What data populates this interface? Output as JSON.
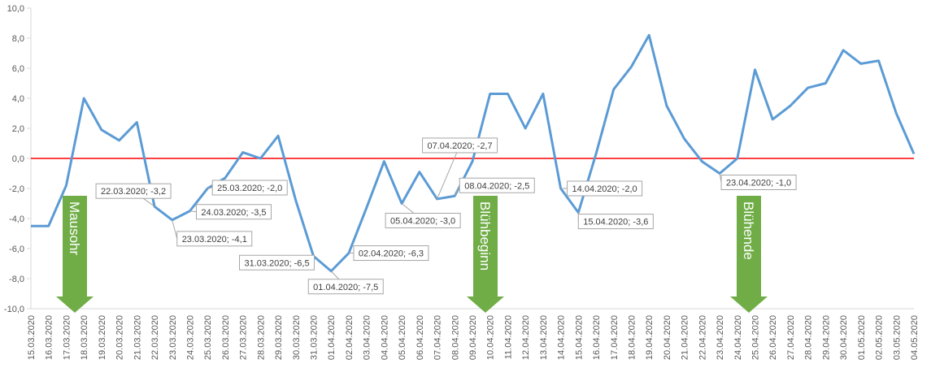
{
  "chart_data": {
    "type": "line",
    "x": [
      "15.03.2020",
      "16.03.2020",
      "17.03.2020",
      "18.03.2020",
      "19.03.2020",
      "20.03.2020",
      "21.03.2020",
      "22.03.2020",
      "23.03.2020",
      "24.03.2020",
      "25.03.2020",
      "26.03.2020",
      "27.03.2020",
      "28.03.2020",
      "29.03.2020",
      "30.03.2020",
      "31.03.2020",
      "01.04.2020",
      "02.04.2020",
      "03.04.2020",
      "04.04.2020",
      "05.04.2020",
      "06.04.2020",
      "07.04.2020",
      "08.04.2020",
      "09.04.2020",
      "10.04.2020",
      "11.04.2020",
      "12.04.2020",
      "13.04.2020",
      "14.04.2020",
      "15.04.2020",
      "16.04.2020",
      "17.04.2020",
      "18.04.2020",
      "19.04.2020",
      "20.04.2020",
      "21.04.2020",
      "22.04.2020",
      "23.04.2020",
      "24.04.2020",
      "25.04.2020",
      "26.04.2020",
      "27.04.2020",
      "28.04.2020",
      "29.04.2020",
      "30.04.2020",
      "01.05.2020",
      "02.05.2020",
      "03.05.2020",
      "04.05.2020"
    ],
    "series": [
      {
        "color": "#5b9bd5",
        "values": [
          -4.5,
          -4.5,
          -1.8,
          4.0,
          1.9,
          1.2,
          2.4,
          -3.2,
          -4.1,
          -3.5,
          -2.0,
          -1.3,
          0.4,
          0.0,
          1.5,
          -2.8,
          -6.5,
          -7.5,
          -6.3,
          -3.3,
          -0.2,
          -3.0,
          -0.9,
          -2.7,
          -2.5,
          -0.2,
          4.3,
          4.3,
          2.0,
          4.3,
          -2.0,
          -3.6,
          0.3,
          4.6,
          6.1,
          8.2,
          3.5,
          1.3,
          -0.2,
          -1.0,
          0.0,
          5.9,
          2.6,
          3.5,
          4.7,
          5.0,
          7.2,
          6.3,
          6.5,
          3.0,
          0.3
        ],
        "value_labels": [
          null,
          null,
          null,
          null,
          null,
          null,
          null,
          "22.03.2020; -3,2",
          "23.03.2020; -4,1",
          "24.03.2020; -3,5",
          "25.03.2020; -2,0",
          null,
          null,
          null,
          null,
          null,
          "31.03.2020; -6,5",
          "01.04.2020; -7,5",
          "02.04.2020; -6,3",
          null,
          null,
          "05.04.2020; -3,0",
          null,
          "07.04.2020; -2,7",
          "08.04.2020; -2,5",
          null,
          null,
          null,
          null,
          null,
          "14.04.2020; -2,0",
          "15.04.2020; -3,6",
          null,
          null,
          null,
          null,
          null,
          null,
          null,
          "23.04.2020; -1,0",
          null,
          null,
          null,
          null,
          null,
          null,
          null,
          null,
          null,
          null,
          null
        ]
      }
    ],
    "ylim": [
      -10,
      10
    ],
    "yticks": [
      {
        "value": -10,
        "label": "-10,0"
      },
      {
        "value": -8,
        "label": "-8,0"
      },
      {
        "value": -6,
        "label": "-6,0"
      },
      {
        "value": -4,
        "label": "-4,0"
      },
      {
        "value": -2,
        "label": "-2,0"
      },
      {
        "value": 0,
        "label": "0,0"
      },
      {
        "value": 2,
        "label": "2,0"
      },
      {
        "value": 4,
        "label": "4,0"
      },
      {
        "value": 6,
        "label": "6,0"
      },
      {
        "value": 8,
        "label": "8,0"
      },
      {
        "value": 10,
        "label": "10,0"
      }
    ],
    "zero_line_color": "#ff0000",
    "annotations": [
      "Mausohr",
      "Blühbeginn",
      "Blühende"
    ],
    "annotation_color": "#70ad47"
  }
}
